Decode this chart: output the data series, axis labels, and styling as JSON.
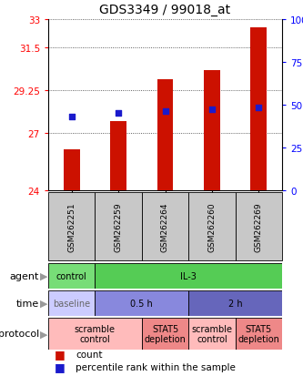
{
  "title": "GDS3349 / 99018_at",
  "samples": [
    "GSM262251",
    "GSM262259",
    "GSM262264",
    "GSM262260",
    "GSM262269"
  ],
  "bar_values": [
    26.15,
    27.65,
    29.85,
    30.3,
    32.55
  ],
  "bar_base": 24.0,
  "percentile_values": [
    27.9,
    28.05,
    28.15,
    28.25,
    28.35
  ],
  "ylim": [
    24.0,
    33.0
  ],
  "yticks": [
    24,
    27,
    29.25,
    31.5,
    33
  ],
  "ytick_labels": [
    "24",
    "27",
    "29.25",
    "31.5",
    "33"
  ],
  "right_ytick_pcts": [
    0,
    25,
    50,
    75,
    100
  ],
  "right_ytick_labels": [
    "0",
    "25",
    "50",
    "75",
    "100%"
  ],
  "bar_color": "#cc1100",
  "dot_color": "#1a1acc",
  "grid_color": "#333333",
  "sample_label_bg": "#c8c8c8",
  "agent_cells": [
    {
      "text": "control",
      "span": 1,
      "bg": "#77dd77",
      "fg": "#000000"
    },
    {
      "text": "IL-3",
      "span": 4,
      "bg": "#55cc55",
      "fg": "#000000"
    }
  ],
  "time_cells": [
    {
      "text": "baseline",
      "span": 1,
      "bg": "#ccccff",
      "fg": "#666666"
    },
    {
      "text": "0.5 h",
      "span": 2,
      "bg": "#8888dd",
      "fg": "#000000"
    },
    {
      "text": "2 h",
      "span": 2,
      "bg": "#6666bb",
      "fg": "#000000"
    }
  ],
  "protocol_cells": [
    {
      "text": "scramble\ncontrol",
      "span": 2,
      "bg": "#ffbbbb",
      "fg": "#000000"
    },
    {
      "text": "STAT5\ndepletion",
      "span": 1,
      "bg": "#ee8888",
      "fg": "#000000"
    },
    {
      "text": "scramble\ncontrol",
      "span": 1,
      "bg": "#ffbbbb",
      "fg": "#000000"
    },
    {
      "text": "STAT5\ndepletion",
      "span": 1,
      "bg": "#ee8888",
      "fg": "#000000"
    }
  ],
  "row_labels": [
    "agent",
    "time",
    "protocol"
  ],
  "legend": [
    {
      "color": "#cc1100",
      "label": "count"
    },
    {
      "color": "#1a1acc",
      "label": "percentile rank within the sample"
    }
  ]
}
